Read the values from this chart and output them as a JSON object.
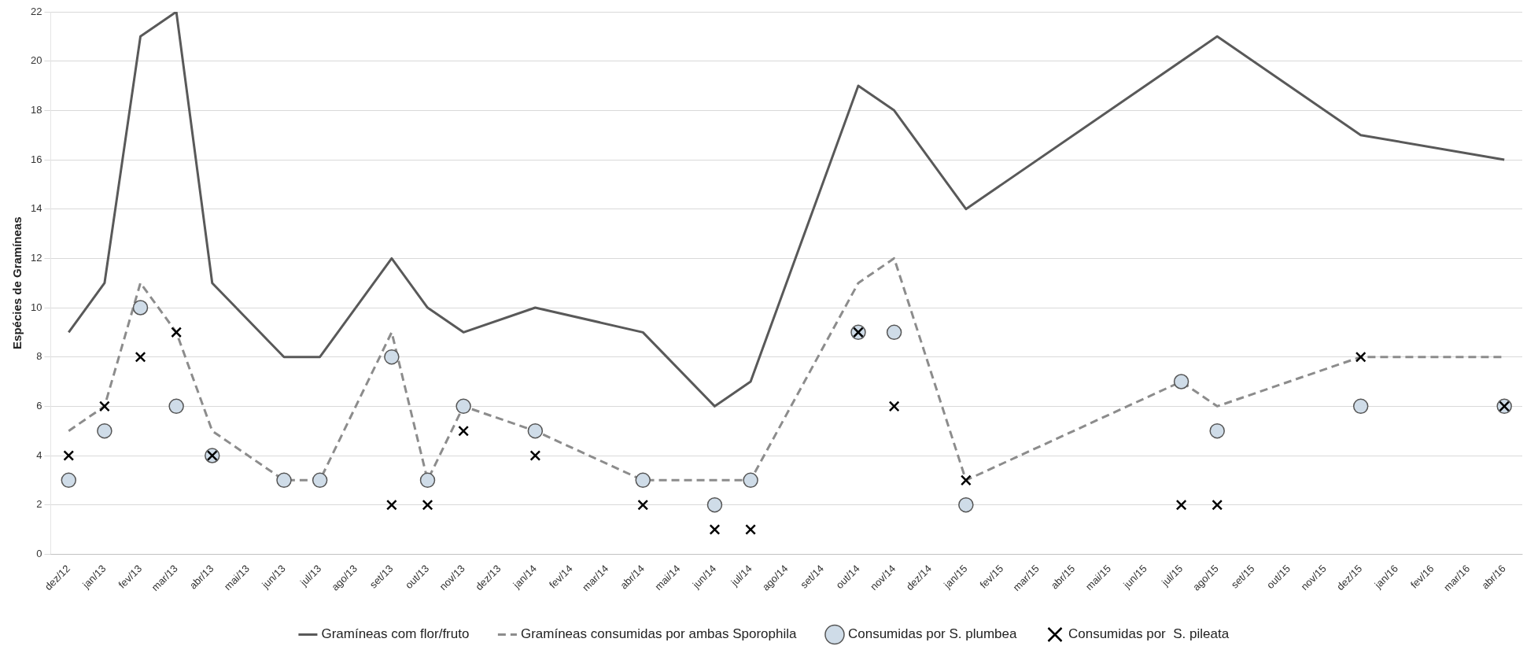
{
  "chart_data": {
    "type": "line",
    "ylabel": "Espécies de Gramíneas",
    "categories": [
      "dez/12",
      "jan/13",
      "fev/13",
      "mar/13",
      "abr/13",
      "mai/13",
      "jun/13",
      "jul/13",
      "ago/13",
      "set/13",
      "out/13",
      "nov/13",
      "dez/13",
      "jan/14",
      "fev/14",
      "mar/14",
      "abr/14",
      "mai/14",
      "jun/14",
      "jul/14",
      "ago/14",
      "set/14",
      "out/14",
      "nov/14",
      "dez/14",
      "jan/15",
      "fev/15",
      "mar/15",
      "abr/15",
      "mai/15",
      "jun/15",
      "jul/15",
      "ago/15",
      "set/15",
      "out/15",
      "nov/15",
      "dez/15",
      "jan/16",
      "fev/16",
      "mar/16",
      "abr/16"
    ],
    "series": [
      {
        "name": "Gramíneas com flor/fruto",
        "color": "#595959",
        "line_style": "solid",
        "marker": "none",
        "values": [
          9,
          11,
          21,
          22,
          11,
          null,
          8,
          8,
          null,
          12,
          10,
          9,
          null,
          10,
          null,
          null,
          9,
          null,
          6,
          7,
          null,
          null,
          19,
          18,
          null,
          14,
          null,
          null,
          null,
          null,
          null,
          null,
          21,
          null,
          null,
          null,
          17,
          null,
          null,
          null,
          16
        ]
      },
      {
        "name": "Gramíneas consumidas por ambas Sporophila",
        "color": "#8c8c8c",
        "line_style": "dashed",
        "marker": "none",
        "values": [
          5,
          6,
          11,
          9,
          5,
          null,
          3,
          3,
          null,
          9,
          3,
          6,
          null,
          5,
          null,
          null,
          3,
          null,
          3,
          3,
          null,
          null,
          11,
          12,
          null,
          3,
          null,
          null,
          null,
          null,
          null,
          7,
          6,
          null,
          null,
          null,
          8,
          null,
          null,
          null,
          8
        ]
      },
      {
        "name": "Consumidas por S. plumbea",
        "type": "scatter",
        "color": "#cfdce8",
        "marker": "circle",
        "values": [
          3,
          5,
          10,
          6,
          4,
          null,
          3,
          3,
          null,
          8,
          3,
          6,
          null,
          5,
          null,
          null,
          3,
          null,
          2,
          3,
          null,
          null,
          9,
          9,
          null,
          2,
          null,
          null,
          null,
          null,
          null,
          7,
          5,
          null,
          null,
          null,
          6,
          null,
          null,
          null,
          6
        ]
      },
      {
        "name": "Consumidas por  S. pileata",
        "type": "scatter",
        "color": "#000000",
        "marker": "cross",
        "values": [
          4,
          6,
          8,
          9,
          4,
          null,
          null,
          null,
          null,
          2,
          2,
          5,
          null,
          4,
          null,
          null,
          2,
          null,
          1,
          1,
          null,
          null,
          9,
          6,
          null,
          3,
          null,
          null,
          null,
          null,
          null,
          2,
          2,
          null,
          null,
          null,
          8,
          null,
          null,
          null,
          6
        ]
      }
    ],
    "ylim": [
      0,
      22
    ],
    "yticks": [
      0,
      2,
      4,
      6,
      8,
      10,
      12,
      14,
      16,
      18,
      20,
      22
    ],
    "grid": "y",
    "legend": "bottom"
  }
}
